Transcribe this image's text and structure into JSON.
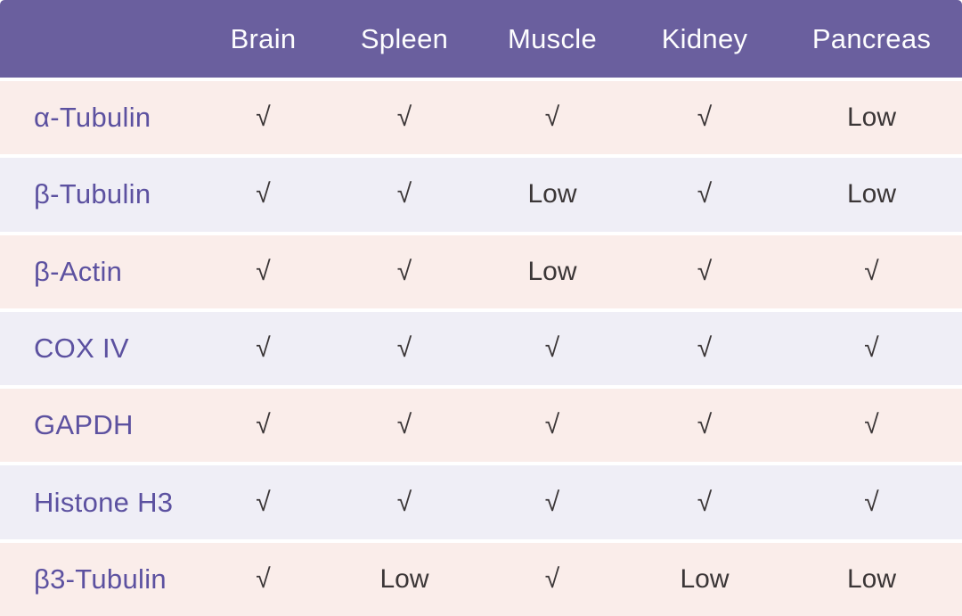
{
  "table": {
    "columns": [
      "Brain",
      "Spleen",
      "Muscle",
      "Kidney",
      "Pancreas"
    ],
    "rows": [
      {
        "label": "α-Tubulin",
        "values": [
          "√",
          "√",
          "√",
          "√",
          "Low"
        ]
      },
      {
        "label": "β-Tubulin",
        "values": [
          "√",
          "√",
          "Low",
          "√",
          "Low"
        ]
      },
      {
        "label": "β-Actin",
        "values": [
          "√",
          "√",
          "Low",
          "√",
          "√"
        ]
      },
      {
        "label": "COX IV",
        "values": [
          "√",
          "√",
          "√",
          "√",
          "√"
        ]
      },
      {
        "label": "GAPDH",
        "values": [
          "√",
          "√",
          "√",
          "√",
          "√"
        ]
      },
      {
        "label": "Histone H3",
        "values": [
          "√",
          "√",
          "√",
          "√",
          "√"
        ]
      },
      {
        "label": "β3-Tubulin",
        "values": [
          "√",
          "Low",
          "√",
          "Low",
          "Low"
        ]
      }
    ]
  },
  "colors": {
    "header_bg": "#6A5F9E",
    "header_text": "#FDFDFE",
    "row_pink": "#FAEDEA",
    "row_lavender": "#EFEEF6",
    "label_color": "#5C51A0",
    "value_color": "#3B3637",
    "gap_color": "#FFFFFF"
  },
  "chart_data": {
    "type": "table",
    "columns": [
      "",
      "Brain",
      "Spleen",
      "Muscle",
      "Kidney",
      "Pancreas"
    ],
    "rows": [
      [
        "α-Tubulin",
        "√",
        "√",
        "√",
        "√",
        "Low"
      ],
      [
        "β-Tubulin",
        "√",
        "√",
        "Low",
        "√",
        "Low"
      ],
      [
        "β-Actin",
        "√",
        "√",
        "Low",
        "√",
        "√"
      ],
      [
        "COX IV",
        "√",
        "√",
        "√",
        "√",
        "√"
      ],
      [
        "GAPDH",
        "√",
        "√",
        "√",
        "√",
        "√"
      ],
      [
        "Histone H3",
        "√",
        "√",
        "√",
        "√",
        "√"
      ],
      [
        "β3-Tubulin",
        "√",
        "Low",
        "√",
        "Low",
        "Low"
      ]
    ],
    "title": "",
    "legend_position": "none",
    "grid": false
  }
}
